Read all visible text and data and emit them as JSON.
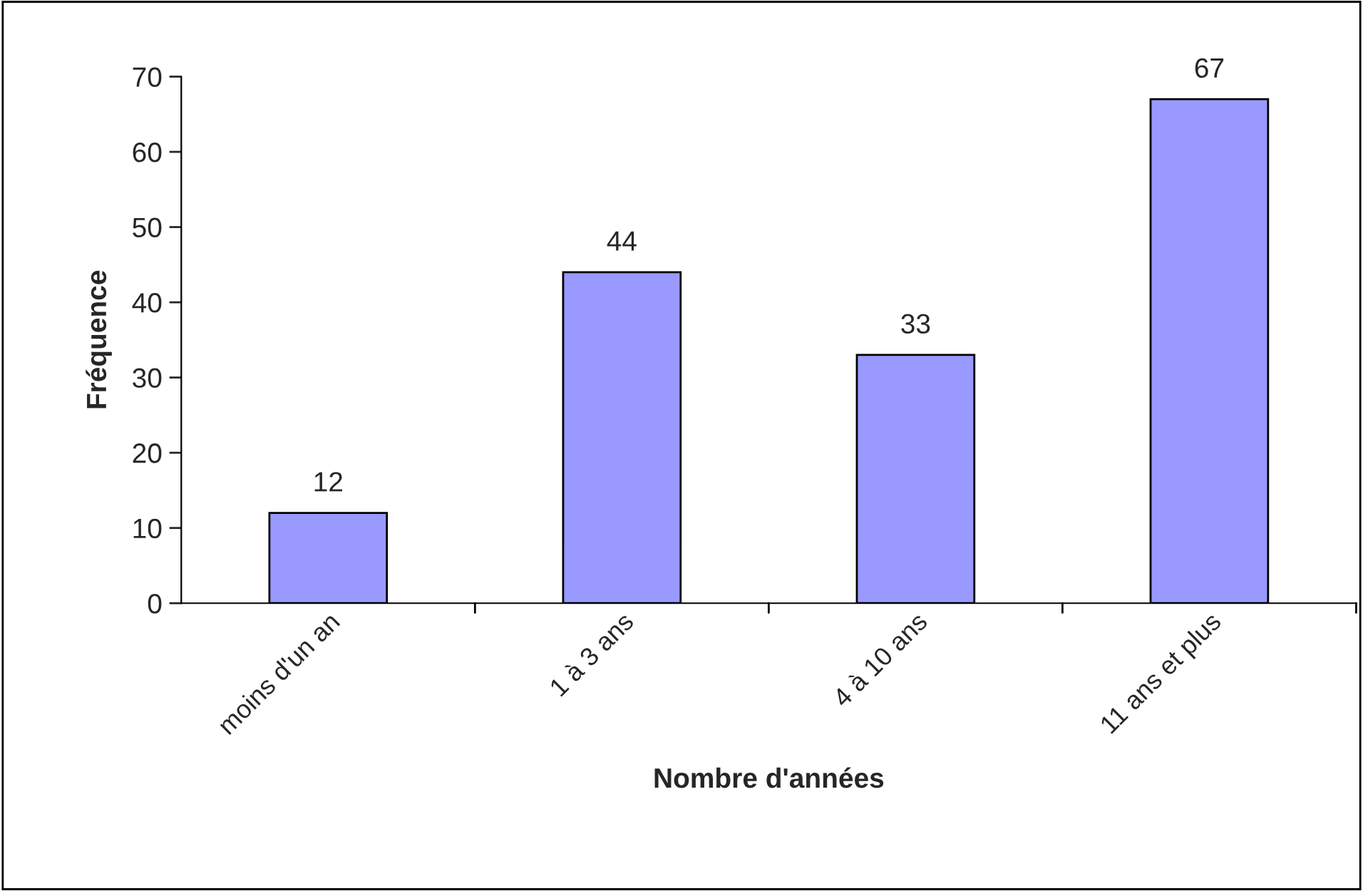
{
  "chart_data": {
    "type": "bar",
    "xlabel": "Nombre d'années",
    "ylabel": "Fréquence",
    "categories": [
      "moins d'un an",
      "1 à 3 ans",
      "4 à 10 ans",
      "11 ans et plus"
    ],
    "values": [
      12,
      44,
      33,
      67
    ],
    "color": "#9999ff",
    "ylim": [
      0,
      70
    ],
    "yticks": [
      0,
      10,
      20,
      30,
      40,
      50,
      60,
      70
    ],
    "grid": false,
    "data_labels": true
  }
}
